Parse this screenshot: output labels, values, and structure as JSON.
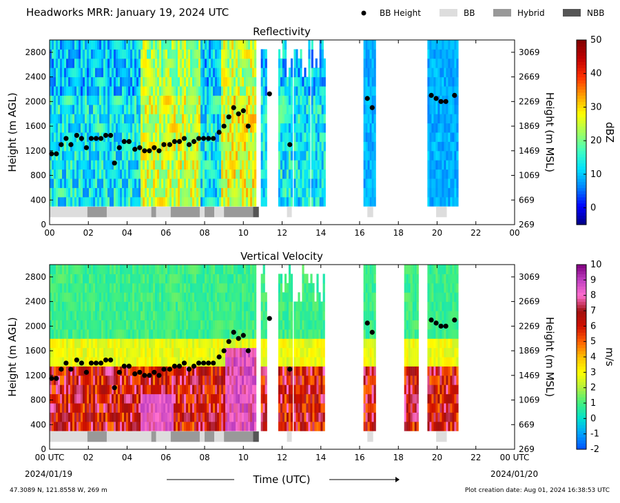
{
  "header": {
    "title": "Headworks MRR:  January 19, 2024 UTC",
    "legend": [
      {
        "label": "BB Height",
        "kind": "dot",
        "color": "#000000"
      },
      {
        "label": "BB",
        "kind": "box",
        "color": "#dddddd"
      },
      {
        "label": "Hybrid",
        "kind": "box",
        "color": "#999999"
      },
      {
        "label": "NBB",
        "kind": "box",
        "color": "#555555"
      }
    ]
  },
  "footer": {
    "location": "47.3089 N, 121.8558 W, 269 m",
    "created": "Plot creation date: Aug 01, 2024 16:38:53 UTC",
    "xlabel": "Time (UTC)",
    "start_date": "2024/01/19",
    "end_date": "2024/01/20"
  },
  "colors": {
    "reflectivity_scale": [
      "#000080",
      "#0000ff",
      "#0080ff",
      "#00e0ff",
      "#40ffc0",
      "#a0ff60",
      "#ffff00",
      "#ffa000",
      "#ff3000",
      "#c00000",
      "#800000"
    ],
    "velocity_scale": [
      "#0050ff",
      "#00a0ff",
      "#00e0d0",
      "#40f080",
      "#b0f040",
      "#ffff00",
      "#ffc000",
      "#ff6000",
      "#d01000",
      "#a01010",
      "#ff70d0",
      "#c040c0",
      "#800080"
    ]
  },
  "chart_data": [
    {
      "type": "heatmap",
      "title": "Reflectivity",
      "ylabel": "Height (m AGL)",
      "ylabel_right": "Height (m MSL)",
      "xlim": [
        0,
        24
      ],
      "ylim": [
        0,
        3000
      ],
      "x_ticks": [
        "00",
        "02",
        "04",
        "06",
        "08",
        "10",
        "12",
        "14",
        "16",
        "18",
        "20",
        "22",
        "00"
      ],
      "y_ticks": [
        0,
        400,
        800,
        1200,
        1600,
        2000,
        2400,
        2800
      ],
      "y_ticks_right": [
        269,
        669,
        1069,
        1469,
        1869,
        2269,
        2669,
        3069
      ],
      "colorbar": {
        "label": "dBZ",
        "min": -5,
        "max": 50,
        "ticks": [
          0,
          10,
          20,
          30,
          40,
          50
        ]
      },
      "data_spans": [
        [
          0,
          10.6
        ],
        [
          10.9,
          11.2
        ],
        [
          11.8,
          12.5
        ],
        [
          12.6,
          13.4
        ],
        [
          13.5,
          14.2
        ],
        [
          16.2,
          16.8
        ],
        [
          19.5,
          21.0
        ]
      ]
    },
    {
      "type": "heatmap",
      "title": "Vertical Velocity",
      "ylabel": "Height (m AGL)",
      "ylabel_right": "Height (m MSL)",
      "xlim": [
        0,
        24
      ],
      "ylim": [
        0,
        3000
      ],
      "x_ticks": [
        "00 UTC",
        "02",
        "04",
        "06",
        "08",
        "10",
        "12",
        "14",
        "16",
        "18",
        "20",
        "22",
        "00 UTC"
      ],
      "y_ticks": [
        0,
        400,
        800,
        1200,
        1600,
        2000,
        2400,
        2800
      ],
      "y_ticks_right": [
        269,
        669,
        1069,
        1469,
        1869,
        2269,
        2669,
        3069
      ],
      "colorbar": {
        "label": "m/s",
        "min": -2,
        "max": 10,
        "ticks": [
          -2,
          -1,
          0,
          1,
          2,
          3,
          4,
          5,
          6,
          7,
          8,
          9,
          10
        ]
      },
      "data_spans": [
        [
          0,
          10.6
        ],
        [
          10.9,
          11.2
        ],
        [
          11.8,
          12.5
        ],
        [
          12.6,
          14.0
        ],
        [
          14.1,
          14.2
        ],
        [
          16.2,
          16.8
        ],
        [
          18.3,
          19.0
        ],
        [
          19.5,
          21.0
        ]
      ]
    }
  ],
  "bb_height": {
    "x": [
      0.1,
      0.35,
      0.6,
      0.85,
      1.1,
      1.4,
      1.65,
      1.9,
      2.15,
      2.4,
      2.65,
      2.9,
      3.15,
      3.35,
      3.6,
      3.85,
      4.1,
      4.4,
      4.65,
      4.9,
      5.15,
      5.4,
      5.65,
      5.9,
      6.2,
      6.45,
      6.7,
      6.95,
      7.2,
      7.45,
      7.7,
      7.95,
      8.2,
      8.45,
      8.75,
      9.0,
      9.25,
      9.5,
      9.75,
      10.0,
      10.25,
      11.35,
      12.4,
      16.4,
      16.65,
      19.7,
      19.95,
      20.2,
      20.45,
      20.9
    ],
    "y": [
      1150,
      1150,
      1300,
      1400,
      1300,
      1450,
      1400,
      1250,
      1400,
      1400,
      1400,
      1450,
      1450,
      1000,
      1250,
      1350,
      1350,
      1225,
      1250,
      1200,
      1200,
      1250,
      1200,
      1300,
      1300,
      1350,
      1350,
      1400,
      1300,
      1350,
      1400,
      1400,
      1400,
      1400,
      1500,
      1600,
      1750,
      1900,
      1800,
      1850,
      1600,
      2125,
      1300,
      2050,
      1900,
      2100,
      2050,
      2000,
      2000,
      2100
    ]
  },
  "bb_type": [
    {
      "start": 0.0,
      "end": 1.95,
      "type": "BB"
    },
    {
      "start": 1.95,
      "end": 2.95,
      "type": "Hybrid"
    },
    {
      "start": 2.95,
      "end": 5.25,
      "type": "BB"
    },
    {
      "start": 5.25,
      "end": 5.5,
      "type": "Hybrid"
    },
    {
      "start": 5.5,
      "end": 6.25,
      "type": "BB"
    },
    {
      "start": 6.25,
      "end": 7.75,
      "type": "Hybrid"
    },
    {
      "start": 7.75,
      "end": 8.0,
      "type": "BB"
    },
    {
      "start": 8.0,
      "end": 8.5,
      "type": "Hybrid"
    },
    {
      "start": 8.5,
      "end": 9.0,
      "type": "BB"
    },
    {
      "start": 9.0,
      "end": 10.5,
      "type": "Hybrid"
    },
    {
      "start": 10.5,
      "end": 10.8,
      "type": "NBB"
    },
    {
      "start": 12.25,
      "end": 12.5,
      "type": "BB"
    },
    {
      "start": 16.4,
      "end": 16.7,
      "type": "BB"
    },
    {
      "start": 19.95,
      "end": 20.5,
      "type": "BB"
    }
  ]
}
